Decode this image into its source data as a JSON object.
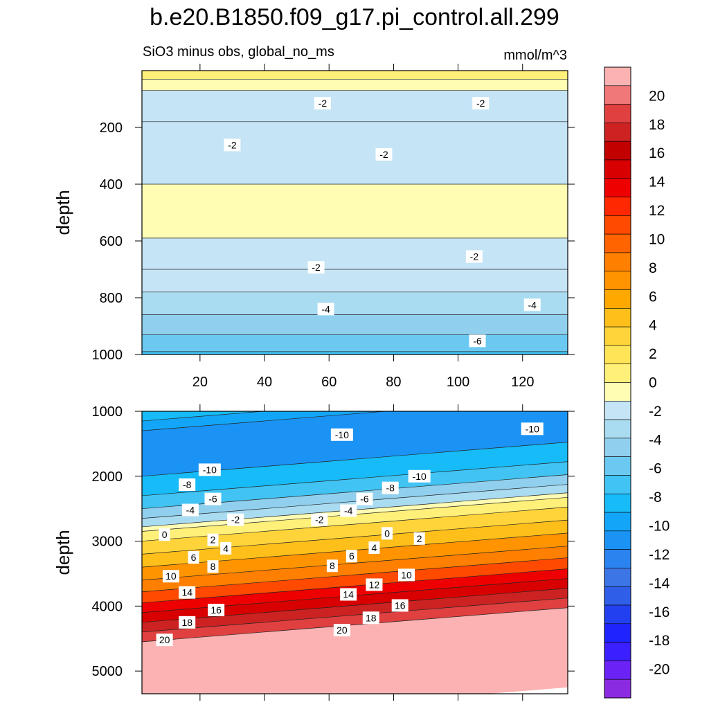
{
  "chart_data": {
    "title": "b.e20.B1850.f09_g17.pi_control.all.299",
    "subtitle_left": "SiO3 minus obs, global_no_ms",
    "units": "mmol/m^3",
    "type": "heatmap",
    "colorbar": {
      "levels": [
        -22,
        -20,
        -18,
        -16,
        -14,
        -12,
        -10,
        -8,
        -6,
        -4,
        -2,
        0,
        2,
        4,
        6,
        8,
        10,
        12,
        14,
        16,
        18,
        20,
        22
      ],
      "colors": [
        "#8a2be2",
        "#6a22f5",
        "#3c1fff",
        "#1f24ff",
        "#2340f0",
        "#2f5fe8",
        "#3c76e6",
        "#2b83ef",
        "#1a93f5",
        "#13a6f8",
        "#16bbf7",
        "#41c3f3",
        "#6bc9f1",
        "#90d0ee",
        "#a9dbf1",
        "#c5e4f5",
        "#fffcb4",
        "#fff07a",
        "#ffe458",
        "#ffd43a",
        "#ffbf1a",
        "#ffa800",
        "#ff9400",
        "#ff7f00",
        "#ff6400",
        "#ff4a00",
        "#ff2800",
        "#ee0000",
        "#d80000",
        "#c20000",
        "#cc2222",
        "#e04040",
        "#f07878",
        "#fcb2b2"
      ],
      "label_values": [
        20,
        18,
        16,
        14,
        12,
        10,
        8,
        6,
        4,
        2,
        0,
        -2,
        -4,
        -6,
        -8,
        -10,
        -12,
        -14,
        -16,
        -18,
        -20
      ]
    },
    "panels": [
      {
        "name": "upper",
        "ylabel": "depth",
        "xlim": [
          2,
          134
        ],
        "ylim": [
          1000,
          0
        ],
        "xticks": [
          20,
          40,
          60,
          80,
          100,
          120
        ],
        "yticks": [
          200,
          400,
          600,
          800,
          1000
        ],
        "bands": [
          {
            "top": 0,
            "value": 0.5
          },
          {
            "top": 30,
            "value": -1
          },
          {
            "top": 70,
            "value": -1.5
          },
          {
            "top": 180,
            "value": -2
          },
          {
            "top": 400,
            "value": -1
          },
          {
            "top": 590,
            "value": -2
          },
          {
            "top": 700,
            "value": -2.5
          },
          {
            "top": 780,
            "value": -3.5
          },
          {
            "top": 860,
            "value": -4.5
          },
          {
            "top": 930,
            "value": -5.5
          },
          {
            "top": 990,
            "value": -6.5
          }
        ],
        "contour_labels": [
          {
            "text": "-2",
            "x": 58,
            "y": 115
          },
          {
            "text": "-2",
            "x": 107,
            "y": 115
          },
          {
            "text": "-2",
            "x": 30,
            "y": 262
          },
          {
            "text": "-2",
            "x": 77,
            "y": 295
          },
          {
            "text": "-2",
            "x": 56,
            "y": 693
          },
          {
            "text": "-2",
            "x": 105,
            "y": 655
          },
          {
            "text": "-4",
            "x": 59,
            "y": 840
          },
          {
            "text": "-4",
            "x": 123,
            "y": 825
          },
          {
            "text": "-6",
            "x": 106,
            "y": 952
          }
        ]
      },
      {
        "name": "lower",
        "ylabel": "depth",
        "xlim": [
          2,
          134
        ],
        "ylim": [
          5350,
          1000
        ],
        "yticks": [
          1000,
          2000,
          3000,
          4000,
          5000
        ],
        "bands": [
          {
            "top": 1000,
            "value": -9
          },
          {
            "top": 1150,
            "value": -10
          },
          {
            "top": 1300,
            "value": -11
          },
          {
            "top": 2000,
            "value": -9
          },
          {
            "top": 2300,
            "value": -7
          },
          {
            "top": 2500,
            "value": -5
          },
          {
            "top": 2650,
            "value": -3
          },
          {
            "top": 2780,
            "value": -1
          },
          {
            "top": 2850,
            "value": 1
          },
          {
            "top": 3000,
            "value": 3
          },
          {
            "top": 3200,
            "value": 5
          },
          {
            "top": 3400,
            "value": 7
          },
          {
            "top": 3600,
            "value": 9
          },
          {
            "top": 3780,
            "value": 11
          },
          {
            "top": 3950,
            "value": 13
          },
          {
            "top": 4100,
            "value": 15
          },
          {
            "top": 4250,
            "value": 17
          },
          {
            "top": 4400,
            "value": 19
          },
          {
            "top": 4550,
            "value": 21
          }
        ],
        "contour_labels": [
          {
            "text": "-10",
            "x": 64,
            "y": 1360
          },
          {
            "text": "-10",
            "x": 123,
            "y": 1270
          },
          {
            "text": "-10",
            "x": 23,
            "y": 1900
          },
          {
            "text": "-10",
            "x": 88,
            "y": 2000
          },
          {
            "text": "-8",
            "x": 16,
            "y": 2130
          },
          {
            "text": "-8",
            "x": 79,
            "y": 2180
          },
          {
            "text": "-6",
            "x": 24,
            "y": 2350
          },
          {
            "text": "-6",
            "x": 71,
            "y": 2350
          },
          {
            "text": "-4",
            "x": 17,
            "y": 2520
          },
          {
            "text": "-4",
            "x": 66,
            "y": 2530
          },
          {
            "text": "-2",
            "x": 31,
            "y": 2670
          },
          {
            "text": "-2",
            "x": 57,
            "y": 2670
          },
          {
            "text": "0",
            "x": 9,
            "y": 2900
          },
          {
            "text": "0",
            "x": 78,
            "y": 2880
          },
          {
            "text": "2",
            "x": 24,
            "y": 2980
          },
          {
            "text": "2",
            "x": 88,
            "y": 2960
          },
          {
            "text": "4",
            "x": 28,
            "y": 3110
          },
          {
            "text": "4",
            "x": 74,
            "y": 3100
          },
          {
            "text": "6",
            "x": 18,
            "y": 3250
          },
          {
            "text": "6",
            "x": 67,
            "y": 3230
          },
          {
            "text": "8",
            "x": 24,
            "y": 3390
          },
          {
            "text": "8",
            "x": 61,
            "y": 3380
          },
          {
            "text": "10",
            "x": 11,
            "y": 3540
          },
          {
            "text": "10",
            "x": 84,
            "y": 3520
          },
          {
            "text": "12",
            "x": 74,
            "y": 3670
          },
          {
            "text": "14",
            "x": 16,
            "y": 3790
          },
          {
            "text": "14",
            "x": 66,
            "y": 3820
          },
          {
            "text": "16",
            "x": 25,
            "y": 4060
          },
          {
            "text": "16",
            "x": 82,
            "y": 3990
          },
          {
            "text": "18",
            "x": 16,
            "y": 4250
          },
          {
            "text": "18",
            "x": 73,
            "y": 4180
          },
          {
            "text": "20",
            "x": 9,
            "y": 4520
          },
          {
            "text": "20",
            "x": 64,
            "y": 4370
          }
        ]
      }
    ]
  }
}
